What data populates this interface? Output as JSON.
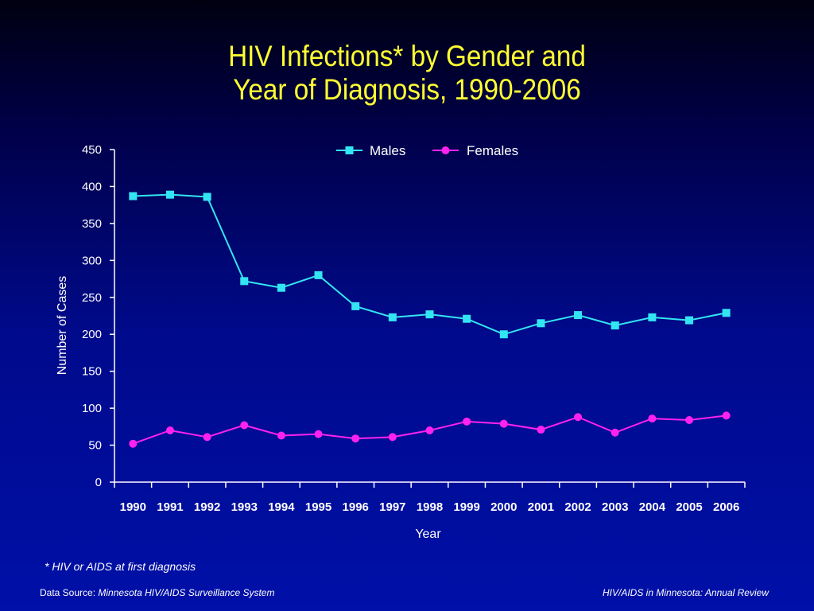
{
  "title_line1": "HIV Infections* by Gender and",
  "title_line2": "Year of Diagnosis, 1990-2006",
  "footnote": "* HIV or AIDS at first diagnosis",
  "source_label": "Data Source: ",
  "source_text": "Minnesota HIV/AIDS Surveillance System",
  "credit": "HIV/AIDS in Minnesota: Annual Review",
  "colors": {
    "title": "#ffff33",
    "males": "#33e5f2",
    "females": "#ff22ee",
    "axis": "#ffffff"
  },
  "chart_data": {
    "type": "line",
    "xlabel": "Year",
    "ylabel": "Number of Cases",
    "ylim": [
      0,
      450
    ],
    "yticks": [
      0,
      50,
      100,
      150,
      200,
      250,
      300,
      350,
      400,
      450
    ],
    "categories": [
      "1990",
      "1991",
      "1992",
      "1993",
      "1994",
      "1995",
      "1996",
      "1997",
      "1998",
      "1999",
      "2000",
      "2001",
      "2002",
      "2003",
      "2004",
      "2005",
      "2006"
    ],
    "legend_position": "top-center",
    "grid": false,
    "series": [
      {
        "name": "Males",
        "marker": "square",
        "values": [
          387,
          389,
          386,
          272,
          263,
          280,
          238,
          223,
          227,
          221,
          200,
          215,
          226,
          212,
          223,
          219,
          229
        ]
      },
      {
        "name": "Females",
        "marker": "circle",
        "values": [
          52,
          70,
          61,
          77,
          63,
          65,
          59,
          61,
          70,
          82,
          79,
          71,
          88,
          67,
          86,
          84,
          90
        ]
      }
    ]
  }
}
